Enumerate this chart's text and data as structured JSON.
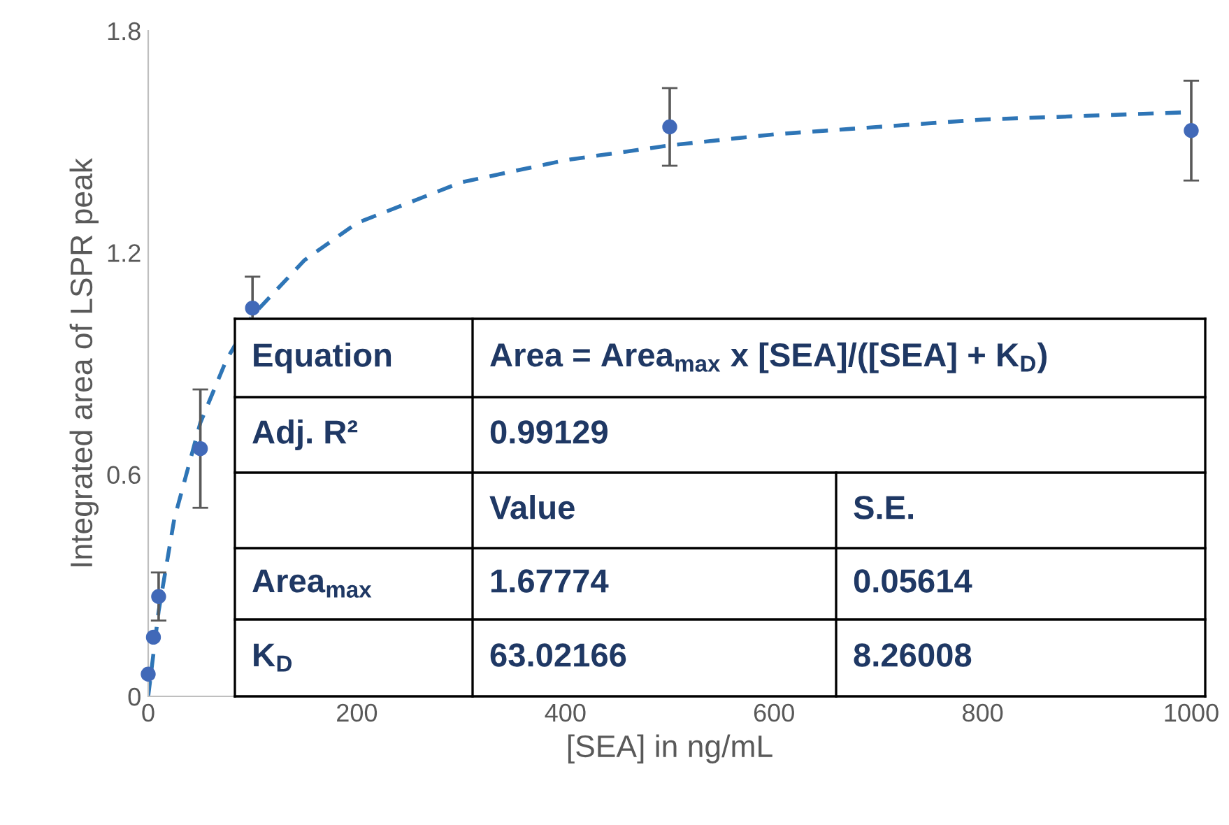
{
  "chart_data": {
    "type": "scatter",
    "xlabel": "[SEA] in ng/mL",
    "ylabel": "Integrated area of LSPR peak",
    "xlim": [
      0,
      1000
    ],
    "xticks": [
      0,
      200,
      400,
      600,
      800,
      1000
    ],
    "ylim": [
      0,
      1.8
    ],
    "yticks": [
      0,
      0.6,
      1.2,
      1.8
    ],
    "series": [
      {
        "type": "line",
        "color": "#2e75b6",
        "line_style": "dashed",
        "marker": "none",
        "x": [
          0,
          10,
          25,
          50,
          75,
          100,
          150,
          200,
          300,
          400,
          500,
          600,
          700,
          800,
          900,
          1000
        ],
        "values": [
          0,
          0.23,
          0.48,
          0.74,
          0.91,
          1.03,
          1.18,
          1.28,
          1.39,
          1.45,
          1.49,
          1.52,
          1.54,
          1.56,
          1.57,
          1.58
        ]
      },
      {
        "color": "#4169b8",
        "marker": "circle",
        "x": [
          0,
          5,
          10,
          50,
          100,
          500,
          1000
        ],
        "values": [
          0.06,
          0.16,
          0.27,
          0.67,
          1.05,
          1.54,
          1.53
        ],
        "errors": [
          null,
          null,
          0.065,
          0.16,
          0.085,
          0.105,
          0.135
        ]
      }
    ],
    "annotations": [
      "Equation",
      "Area = Area$_{max}$ x [SEA]/([SEA] + K$_{D}$)",
      "Adj. R²",
      "0.99129",
      "Value",
      "S.E.",
      "Area$_{max}$",
      "1.67774",
      "0.05614",
      "K$_{D}$",
      "63.02166",
      "8.26008"
    ]
  }
}
